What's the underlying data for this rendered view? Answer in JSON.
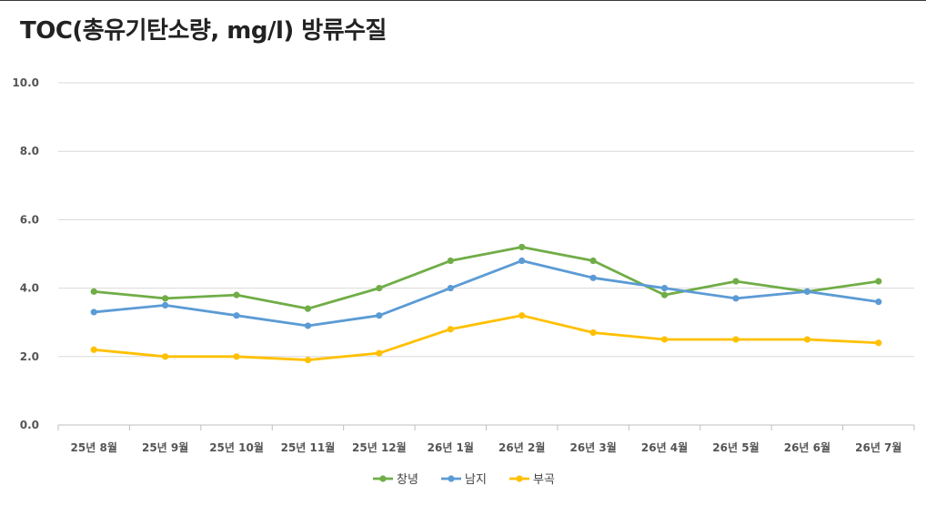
{
  "title": "TOC(총유기탄소량, mg/l) 방류수질",
  "chart_data": {
    "type": "line",
    "title": "TOC(총유기탄소량, mg/l) 방류수질",
    "xlabel": "",
    "ylabel": "",
    "categories": [
      "25년 8월",
      "25년 9월",
      "25년 10월",
      "25년 11월",
      "25년 12월",
      "26년 1월",
      "26년 2월",
      "26년 3월",
      "26년 4월",
      "26년 5월",
      "26년 6월",
      "26년 7월"
    ],
    "ylim": [
      0,
      10
    ],
    "yticks": [
      "0.0",
      "2.0",
      "4.0",
      "6.0",
      "8.0",
      "10.0"
    ],
    "grid": true,
    "legend_position": "bottom",
    "series": [
      {
        "name": "창녕",
        "color": "#70ad47",
        "values": [
          3.9,
          3.7,
          3.8,
          3.4,
          4.0,
          4.8,
          5.2,
          4.8,
          3.8,
          4.2,
          3.9,
          4.2
        ]
      },
      {
        "name": "남지",
        "color": "#5b9bd5",
        "values": [
          3.3,
          3.5,
          3.2,
          2.9,
          3.2,
          4.0,
          4.8,
          4.3,
          4.0,
          3.7,
          3.9,
          3.6
        ]
      },
      {
        "name": "부곡",
        "color": "#ffc000",
        "values": [
          2.2,
          2.0,
          2.0,
          1.9,
          2.1,
          2.8,
          3.2,
          2.7,
          2.5,
          2.5,
          2.5,
          2.4
        ]
      }
    ]
  }
}
